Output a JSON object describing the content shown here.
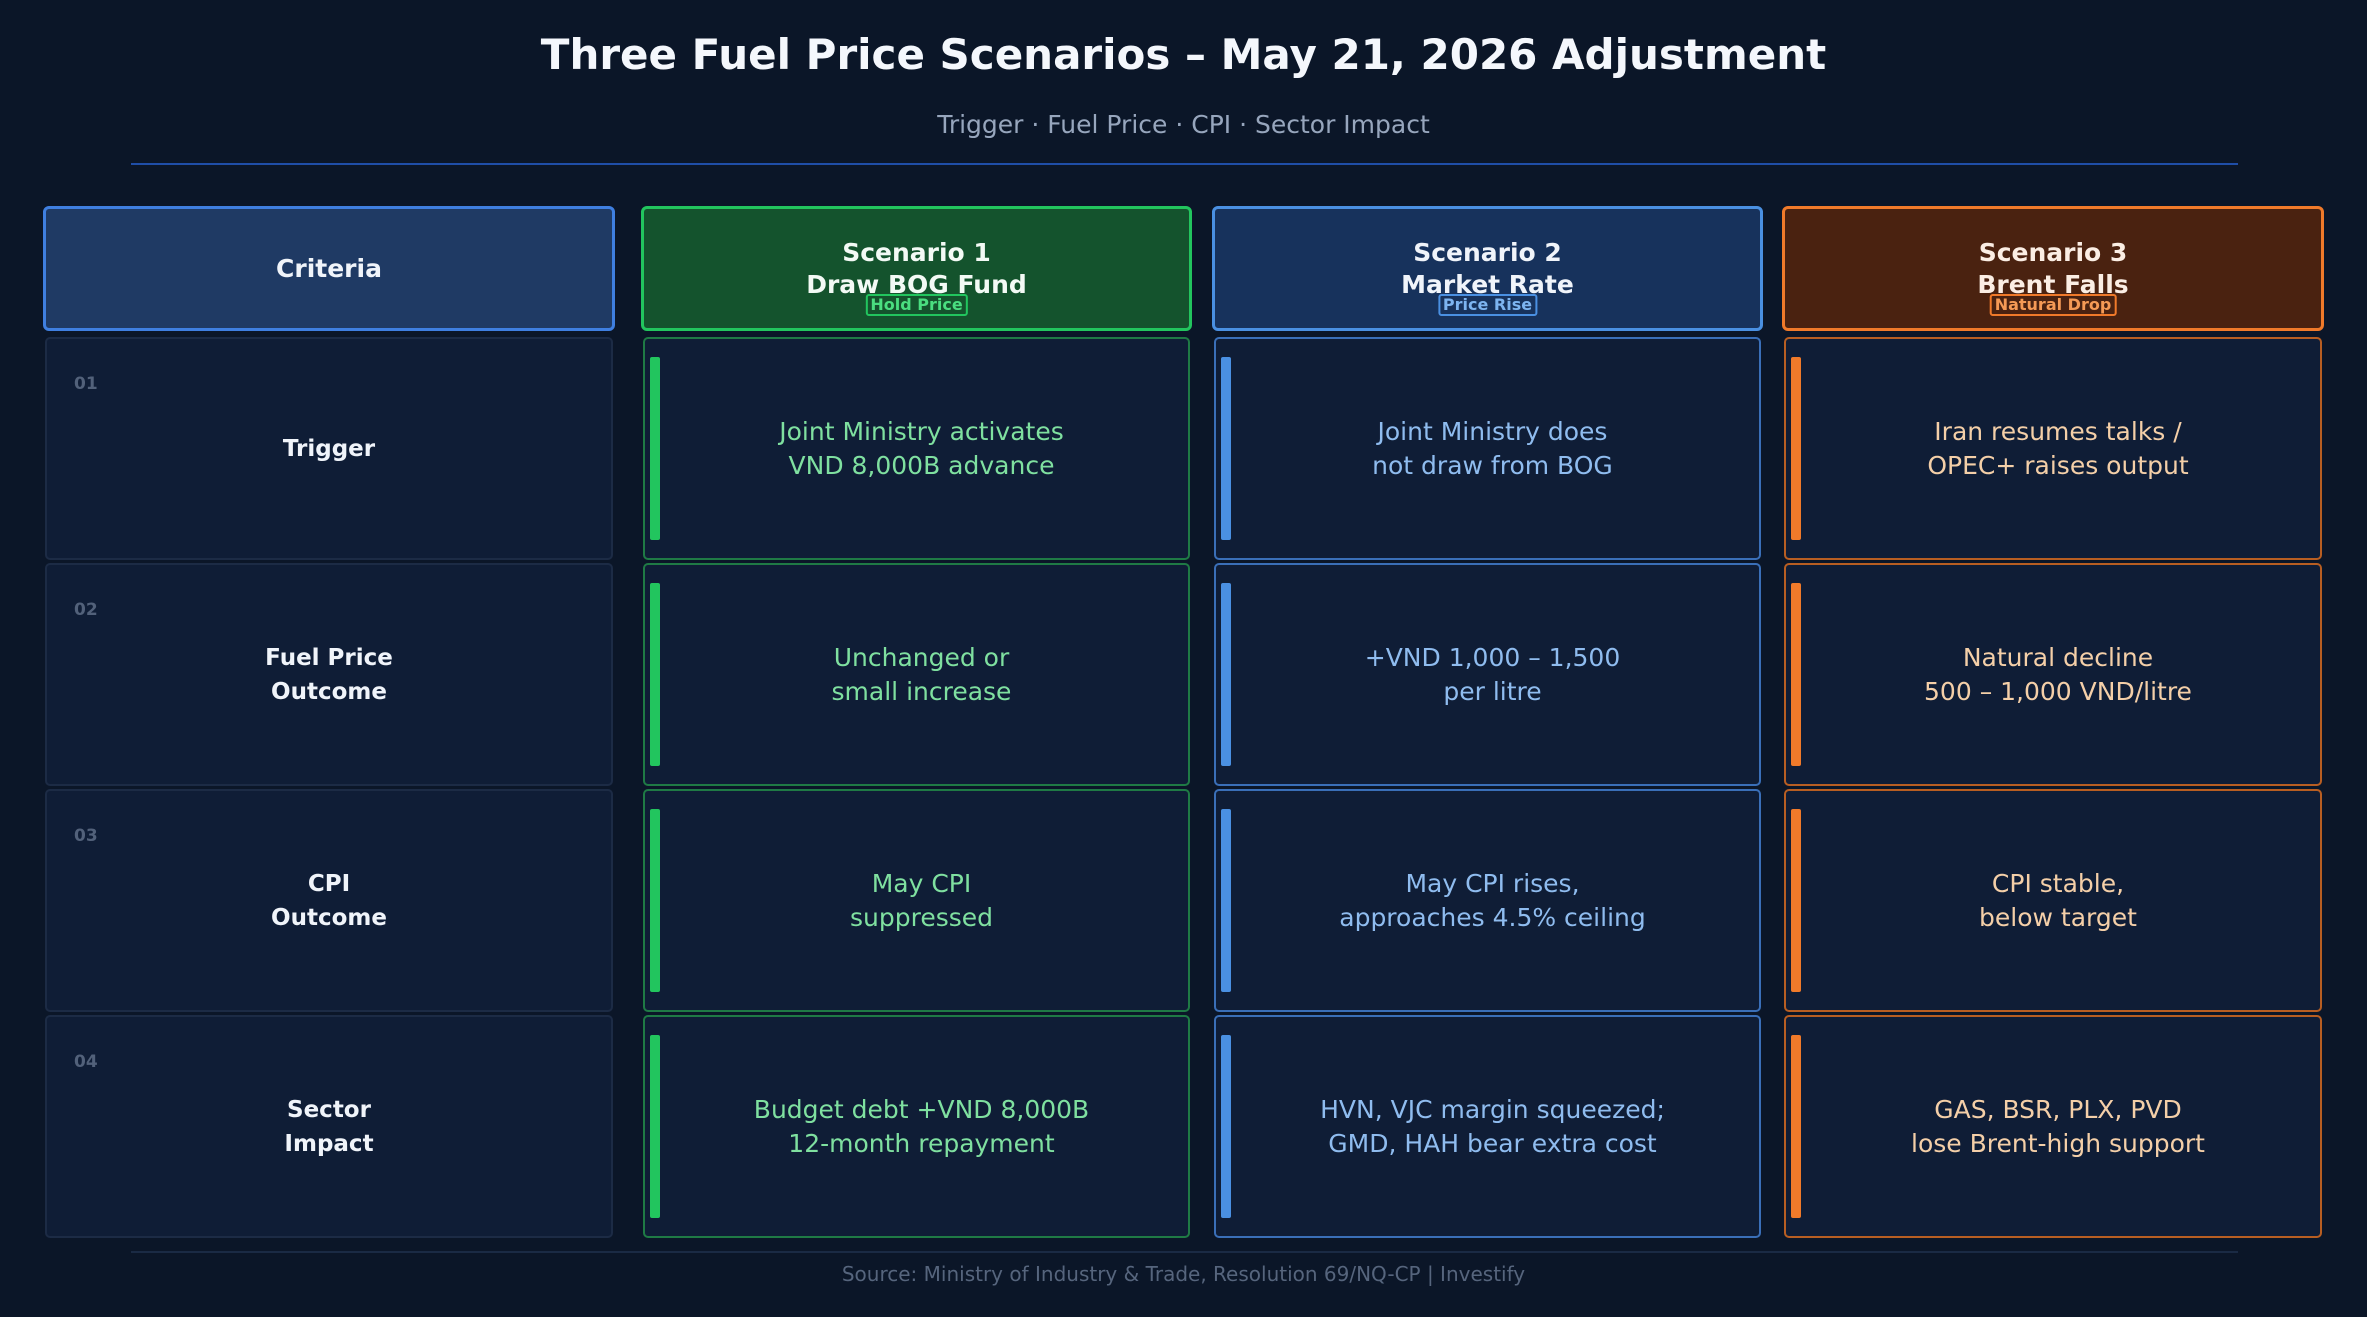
{
  "title": "Three Fuel Price Scenarios – May 21, 2026 Adjustment",
  "subtitle": "Trigger · Fuel Price · CPI · Sector Impact",
  "source": "Source: Ministry of Industry & Trade, Resolution 69/NQ-CP  |  Investify",
  "criteria": {
    "header": "Criteria",
    "rows": [
      {
        "num": "01",
        "label": "Trigger"
      },
      {
        "num": "02",
        "label": "Fuel Price\nOutcome"
      },
      {
        "num": "03",
        "label": "CPI\nOutcome"
      },
      {
        "num": "04",
        "label": "Sector\nImpact"
      }
    ]
  },
  "scenarios": [
    {
      "title": "Scenario 1",
      "subtitle": "Draw BOG Fund",
      "badge": "Hold Price",
      "accent": "#22c55e",
      "cells": [
        "Joint Ministry activates\nVND 8,000B advance",
        "Unchanged or\nsmall increase",
        "May CPI\nsuppressed",
        "Budget debt +VND 8,000B\n12-month repayment"
      ]
    },
    {
      "title": "Scenario 2",
      "subtitle": "Market Rate",
      "badge": "Price Rise",
      "accent": "#4a90e2",
      "cells": [
        "Joint Ministry does\nnot draw from BOG",
        "+VND 1,000 – 1,500\nper litre",
        "May CPI rises,\napproaches 4.5% ceiling",
        "HVN, VJC margin squeezed;\nGMD, HAH bear extra cost"
      ]
    },
    {
      "title": "Scenario 3",
      "subtitle": "Brent Falls",
      "badge": "Natural Drop",
      "accent": "#f07a2a",
      "cells": [
        "Iran resumes talks /\nOPEC+ raises output",
        "Natural decline\n500 – 1,000 VND/litre",
        "CPI stable,\nbelow target",
        "GAS, BSR, PLX, PVD\nlose Brent-high support"
      ]
    }
  ]
}
